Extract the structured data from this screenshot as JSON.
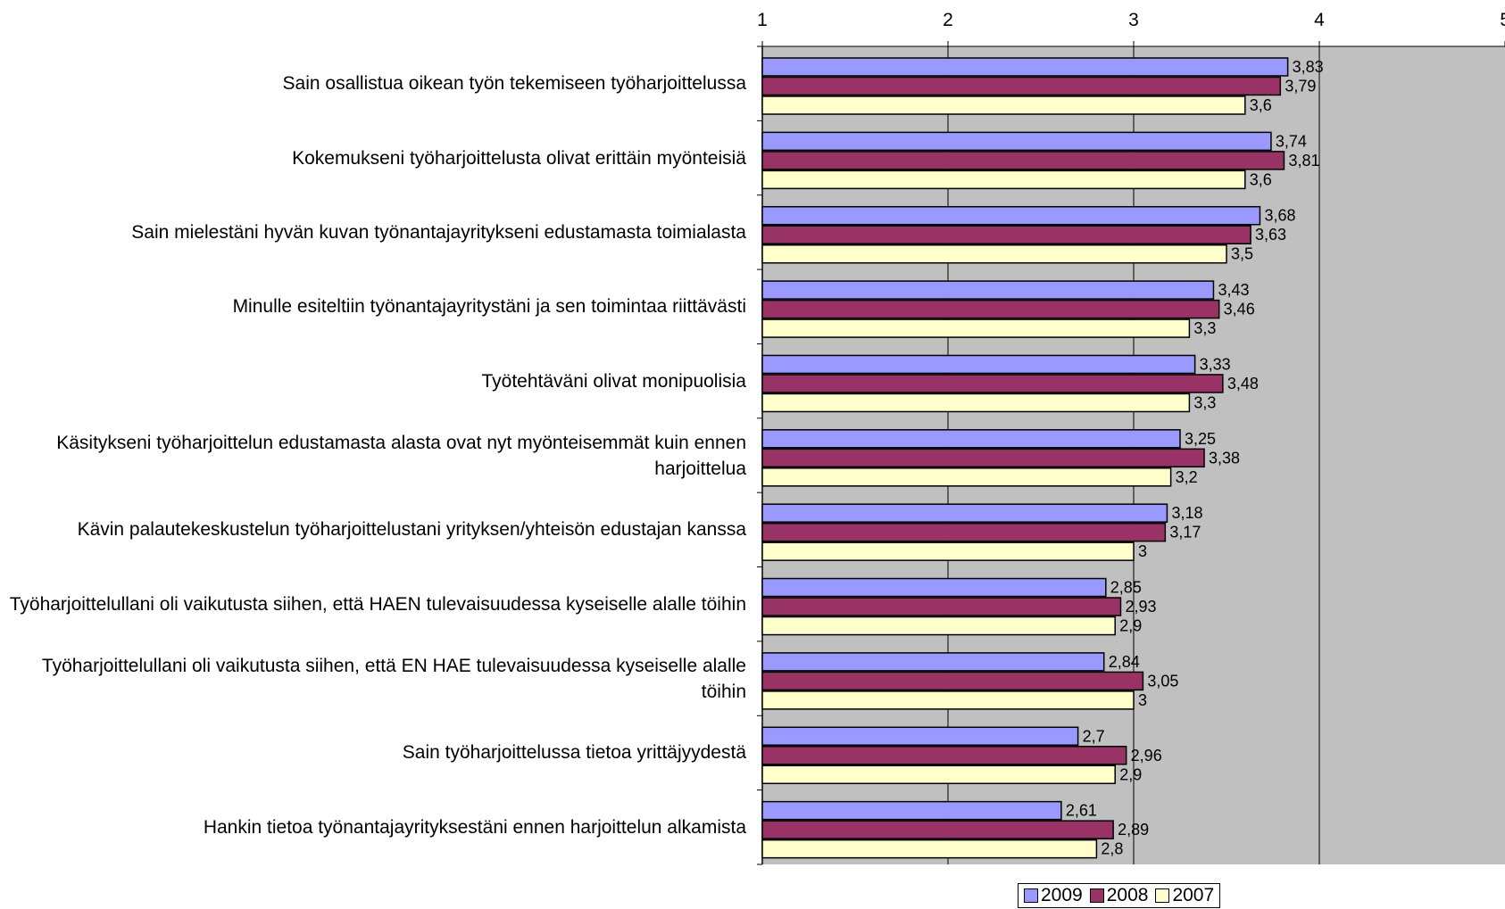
{
  "chart_data": {
    "type": "bar",
    "orientation": "horizontal",
    "title": "",
    "xlabel": "",
    "ylabel": "",
    "xlim": [
      1,
      5
    ],
    "ticks": [
      "1",
      "2",
      "3",
      "4",
      "5"
    ],
    "grid": true,
    "legend_position": "bottom",
    "plot_background": "#c0c0c0",
    "categories": [
      "Sain osallistua oikean työn tekemiseen työharjoittelussa",
      "Kokemukseni työharjoittelusta olivat erittäin myönteisiä",
      "Sain mielestäni hyvän kuvan työnantajayritykseni edustamasta toimialasta",
      "Minulle esiteltiin työnantajayritystäni ja sen toimintaa riittävästi",
      "Työtehtäväni olivat monipuolisia",
      "Käsitykseni työharjoittelun edustamasta alasta ovat nyt myönteisemmät kuin ennen harjoittelua",
      "Kävin palautekeskustelun työharjoittelustani yrityksen/yhteisön edustajan kanssa",
      "Työharjoittelullani oli vaikutusta siihen, että HAEN tulevaisuudessa kyseiselle alalle töihin",
      "Työharjoittelullani oli vaikutusta siihen, että EN HAE tulevaisuudessa kyseiselle alalle töihin",
      "Sain työharjoittelussa tietoa yrittäjyydestä",
      "Hankin tietoa työnantajayrityksestäni ennen harjoittelun alkamista"
    ],
    "series": [
      {
        "name": "2009",
        "color": "#9999ff",
        "values": [
          3.83,
          3.74,
          3.68,
          3.43,
          3.33,
          3.25,
          3.18,
          2.85,
          2.84,
          2.7,
          2.61
        ],
        "labels": [
          "3,83",
          "3,74",
          "3,68",
          "3,43",
          "3,33",
          "3,25",
          "3,18",
          "2,85",
          "2,84",
          "2,7",
          "2,61"
        ]
      },
      {
        "name": "2008",
        "color": "#993366",
        "values": [
          3.79,
          3.81,
          3.63,
          3.46,
          3.48,
          3.38,
          3.17,
          2.93,
          3.05,
          2.96,
          2.89
        ],
        "labels": [
          "3,79",
          "3,81",
          "3,63",
          "3,46",
          "3,48",
          "3,38",
          "3,17",
          "2,93",
          "3,05",
          "2,96",
          "2,89"
        ]
      },
      {
        "name": "2007",
        "color": "#ffffcc",
        "values": [
          3.6,
          3.6,
          3.5,
          3.3,
          3.3,
          3.2,
          3.0,
          2.9,
          3.0,
          2.9,
          2.8
        ],
        "labels": [
          "3,6",
          "3,6",
          "3,5",
          "3,3",
          "3,3",
          "3,2",
          "3",
          "2,9",
          "3",
          "2,9",
          "2,8"
        ]
      }
    ]
  }
}
